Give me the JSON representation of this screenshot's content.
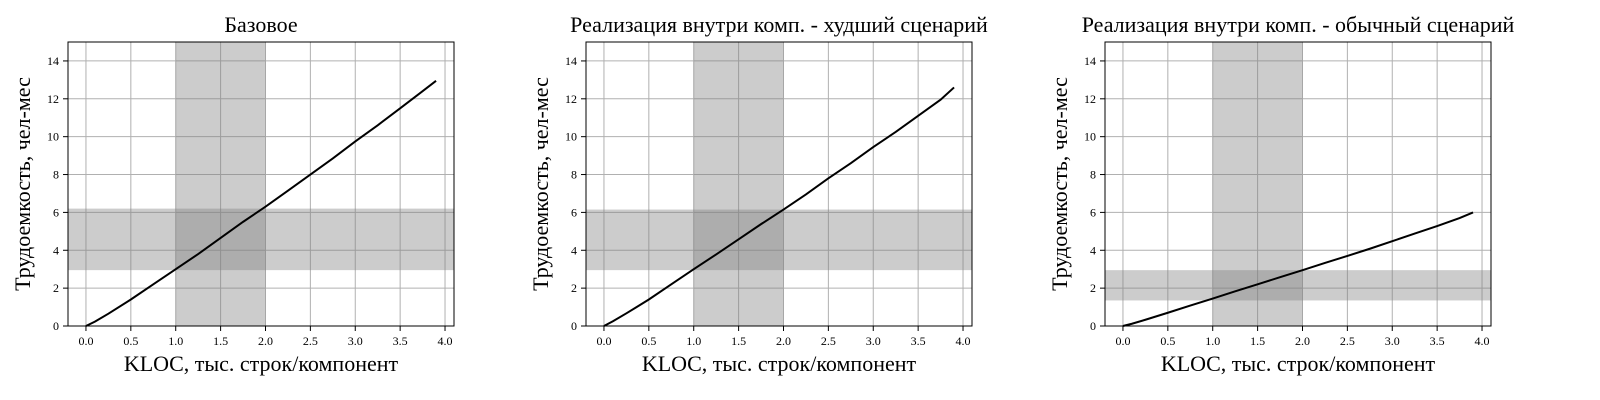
{
  "chart_data": [
    {
      "type": "line",
      "title": "Базовое",
      "xlabel": "KLOC, тыс. строк/компонент",
      "ylabel": "Трудоемкость, чел-мес",
      "xlim": [
        -0.2,
        4.1
      ],
      "ylim": [
        0,
        15
      ],
      "xticks": [
        "0.0",
        "0.5",
        "1.0",
        "1.5",
        "2.0",
        "2.5",
        "3.0",
        "3.5",
        "4.0"
      ],
      "yticks": [
        "0",
        "2",
        "4",
        "6",
        "8",
        "10",
        "12",
        "14"
      ],
      "grid": true,
      "vband": [
        1.0,
        2.0
      ],
      "hband": [
        2.95,
        6.2
      ],
      "series": [
        {
          "x": [
            0,
            0.1,
            0.25,
            0.5,
            0.75,
            1.0,
            1.25,
            1.5,
            1.75,
            2.0,
            2.25,
            2.5,
            2.75,
            3.0,
            3.25,
            3.5,
            3.75,
            3.9
          ],
          "y": [
            0,
            0.23,
            0.65,
            1.4,
            2.2,
            3.0,
            3.8,
            4.65,
            5.5,
            6.3,
            7.15,
            8.0,
            8.85,
            9.75,
            10.6,
            11.5,
            12.4,
            12.95
          ]
        }
      ]
    },
    {
      "type": "line",
      "title": "Реализация внутри комп. - худший сценарий",
      "xlabel": "KLOC, тыс. строк/компонент",
      "ylabel": "Трудоемкость, чел-мес",
      "xlim": [
        -0.2,
        4.1
      ],
      "ylim": [
        0,
        15
      ],
      "xticks": [
        "0.0",
        "0.5",
        "1.0",
        "1.5",
        "2.0",
        "2.5",
        "3.0",
        "3.5",
        "4.0"
      ],
      "yticks": [
        "0",
        "2",
        "4",
        "6",
        "8",
        "10",
        "12",
        "14"
      ],
      "grid": true,
      "vband": [
        1.0,
        2.0
      ],
      "hband": [
        2.95,
        6.15
      ],
      "series": [
        {
          "x": [
            0,
            0.1,
            0.25,
            0.5,
            0.75,
            1.0,
            1.25,
            1.5,
            1.75,
            2.0,
            2.25,
            2.5,
            2.75,
            3.0,
            3.25,
            3.5,
            3.75,
            3.9
          ],
          "y": [
            0,
            0.25,
            0.67,
            1.4,
            2.2,
            3.0,
            3.78,
            4.58,
            5.38,
            6.15,
            6.95,
            7.8,
            8.6,
            9.45,
            10.25,
            11.1,
            11.95,
            12.6
          ]
        }
      ]
    },
    {
      "type": "line",
      "title": "Реализация внутри комп. - обычный сценарий",
      "xlabel": "KLOC, тыс. строк/компонент",
      "ylabel": "Трудоемкость, чел-мес",
      "xlim": [
        -0.2,
        4.1
      ],
      "ylim": [
        0,
        15
      ],
      "xticks": [
        "0.0",
        "0.5",
        "1.0",
        "1.5",
        "2.0",
        "2.5",
        "3.0",
        "3.5",
        "4.0"
      ],
      "yticks": [
        "0",
        "2",
        "4",
        "6",
        "8",
        "10",
        "12",
        "14"
      ],
      "grid": true,
      "vband": [
        1.0,
        2.0
      ],
      "hband": [
        1.35,
        2.95
      ],
      "series": [
        {
          "x": [
            0,
            0.1,
            0.25,
            0.5,
            0.75,
            1.0,
            1.25,
            1.5,
            1.75,
            2.0,
            2.25,
            2.5,
            2.75,
            3.0,
            3.25,
            3.5,
            3.75,
            3.9
          ],
          "y": [
            0,
            0.12,
            0.33,
            0.7,
            1.08,
            1.45,
            1.83,
            2.2,
            2.58,
            2.95,
            3.33,
            3.7,
            4.08,
            4.48,
            4.88,
            5.28,
            5.7,
            6.0
          ]
        }
      ]
    }
  ]
}
